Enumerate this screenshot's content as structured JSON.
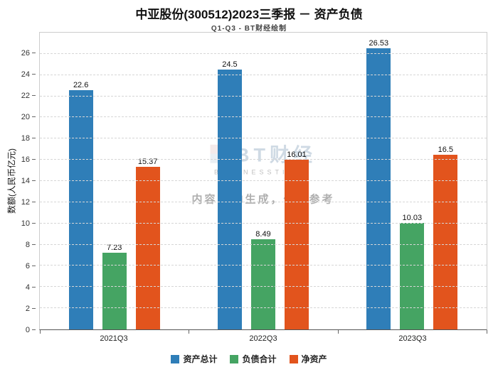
{
  "chart_data": {
    "type": "bar",
    "title": "中亚股份(300512)2023三季报 － 资产负债",
    "subtitle": "Q1-Q3 - BT财经绘制",
    "ylabel": "数额(人民币亿元)",
    "xlabel": "",
    "categories": [
      "2021Q3",
      "2022Q3",
      "2023Q3"
    ],
    "series": [
      {
        "id": "total-assets",
        "name": "资产总计",
        "color": "#2f7eb8",
        "values": [
          22.6,
          24.5,
          26.53
        ]
      },
      {
        "id": "total-liabilities",
        "name": "负债合计",
        "color": "#45a463",
        "values": [
          7.23,
          8.49,
          10.03
        ]
      },
      {
        "id": "net-assets",
        "name": "净资产",
        "color": "#e2541d",
        "values": [
          15.37,
          16.01,
          16.5
        ]
      }
    ],
    "ylim": [
      0,
      28
    ],
    "yticks": [
      0,
      2,
      4,
      6,
      8,
      10,
      12,
      14,
      16,
      18,
      20,
      22,
      24,
      26
    ],
    "grid": "horizontal-dashed",
    "legend_position": "bottom"
  },
  "watermark": {
    "logo_text": "BT财经",
    "logo_sub": "BUSINESSTIMES",
    "notice": "内容由AI生成，仅供参考"
  }
}
